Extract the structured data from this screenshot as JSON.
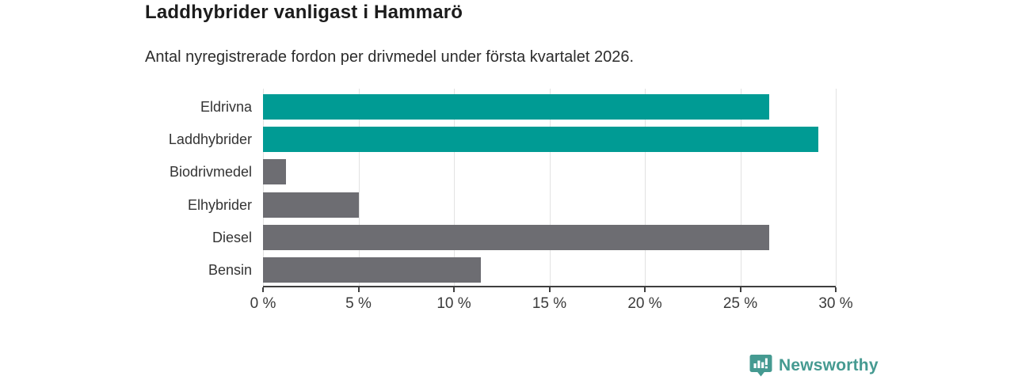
{
  "header": {
    "title": "Laddhybrider vanligast i Hammarö",
    "subtitle": "Antal nyregistrerade fordon per drivmedel under första kvartalet 2026."
  },
  "chart_data": {
    "type": "bar",
    "orientation": "horizontal",
    "title": "Laddhybrider vanligast i Hammarö",
    "subtitle": "Antal nyregistrerade fordon per drivmedel under första kvartalet 2026.",
    "categories": [
      "Eldrivna",
      "Laddhybrider",
      "Biodrivmedel",
      "Elhybrider",
      "Diesel",
      "Bensin"
    ],
    "values": [
      26.5,
      29.1,
      1.2,
      5.0,
      26.5,
      11.4
    ],
    "unit": "%",
    "xlim": [
      0,
      30
    ],
    "x_ticks": [
      0,
      5,
      10,
      15,
      20,
      25,
      30
    ],
    "x_tick_labels": [
      "0 %",
      "5 %",
      "10 %",
      "15 %",
      "20 %",
      "25 %",
      "30 %"
    ],
    "highlight": [
      true,
      true,
      false,
      false,
      false,
      false
    ],
    "colors": {
      "accent": "#009b94",
      "muted": "#6d6d72"
    },
    "grid": true,
    "legend": "none",
    "xlabel": "",
    "ylabel": ""
  },
  "footer": {
    "brand": "Newsworthy",
    "logo_icon": "newsworthy-bar-chart-badge",
    "brand_color": "#459a91",
    "badge_color": "#459a91"
  }
}
